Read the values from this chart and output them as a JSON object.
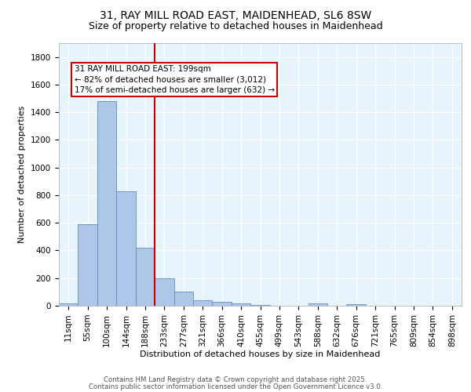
{
  "title_line1": "31, RAY MILL ROAD EAST, MAIDENHEAD, SL6 8SW",
  "title_line2": "Size of property relative to detached houses in Maidenhead",
  "xlabel": "Distribution of detached houses by size in Maidenhead",
  "ylabel": "Number of detached properties",
  "categories": [
    "11sqm",
    "55sqm",
    "100sqm",
    "144sqm",
    "188sqm",
    "233sqm",
    "277sqm",
    "321sqm",
    "366sqm",
    "410sqm",
    "455sqm",
    "499sqm",
    "543sqm",
    "588sqm",
    "632sqm",
    "676sqm",
    "721sqm",
    "765sqm",
    "809sqm",
    "854sqm",
    "898sqm"
  ],
  "bar_values": [
    15,
    590,
    1480,
    830,
    420,
    200,
    100,
    38,
    28,
    18,
    5,
    0,
    0,
    15,
    0,
    12,
    0,
    0,
    0,
    0,
    0
  ],
  "bar_color": "#aec6e8",
  "bar_edge_color": "#5a8fc2",
  "background_color": "#e8f4fc",
  "grid_color": "#ffffff",
  "vline_x_index": 4.5,
  "vline_color": "#cc0000",
  "annotation_text_line1": "31 RAY MILL ROAD EAST: 199sqm",
  "annotation_text_line2": "← 82% of detached houses are smaller (3,012)",
  "annotation_text_line3": "17% of semi-detached houses are larger (632) →",
  "footer_line1": "Contains HM Land Registry data © Crown copyright and database right 2025.",
  "footer_line2": "Contains public sector information licensed under the Open Government Licence v3.0.",
  "ylim": [
    0,
    1900
  ],
  "yticks": [
    0,
    200,
    400,
    600,
    800,
    1000,
    1200,
    1400,
    1600,
    1800
  ],
  "title_fontsize": 10,
  "subtitle_fontsize": 9,
  "axis_label_fontsize": 8,
  "tick_fontsize": 7.5,
  "annotation_fontsize": 7.5,
  "footer_fontsize": 6.2
}
